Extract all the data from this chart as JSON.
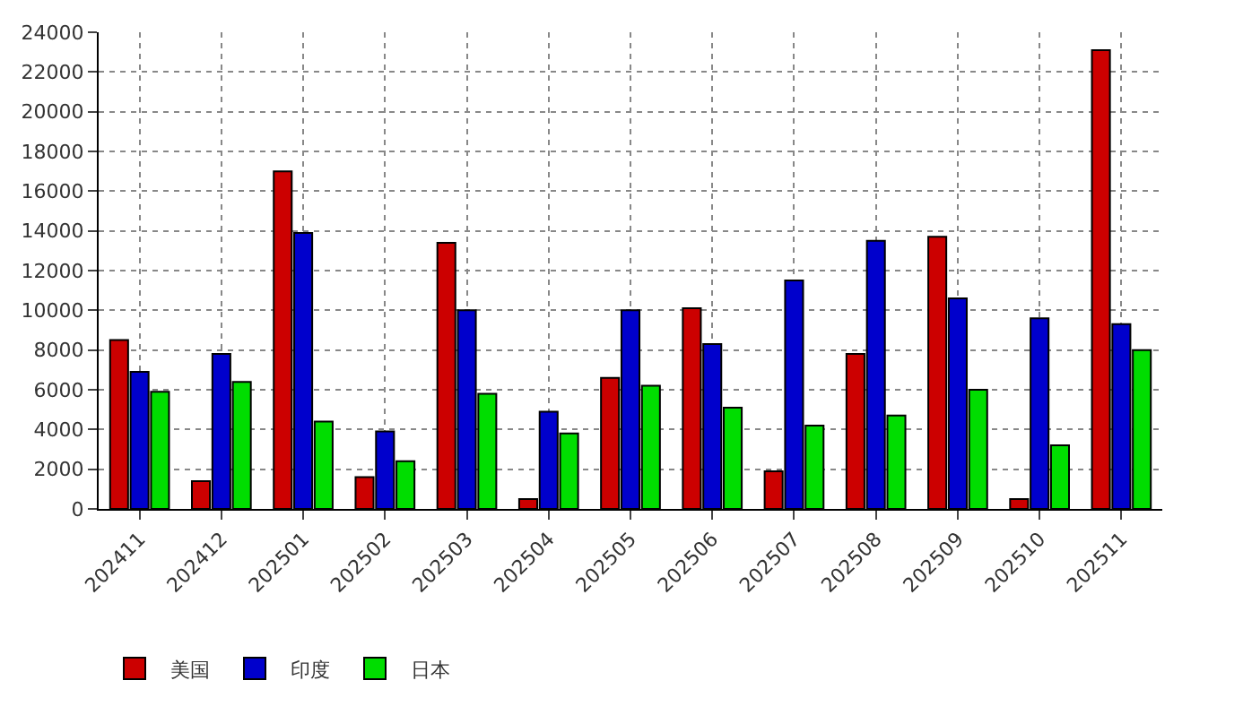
{
  "chart_data": {
    "type": "bar",
    "categories": [
      "202411",
      "202412",
      "202501",
      "202502",
      "202503",
      "202504",
      "202505",
      "202506",
      "202507",
      "202508",
      "202509",
      "202510",
      "202511"
    ],
    "series": [
      {
        "name": "美国",
        "color": "#cc0000",
        "values": [
          8500,
          1400,
          17000,
          1600,
          13400,
          500,
          6600,
          10100,
          1900,
          7800,
          13700,
          500,
          23100
        ]
      },
      {
        "name": "印度",
        "color": "#0000cc",
        "values": [
          6900,
          7800,
          13900,
          3900,
          10000,
          4900,
          10000,
          8300,
          11500,
          13500,
          10600,
          9600,
          9300
        ]
      },
      {
        "name": "日本",
        "color": "#00dd00",
        "values": [
          5900,
          6400,
          4400,
          2400,
          5800,
          3800,
          6200,
          5100,
          4200,
          4700,
          6000,
          3200,
          8000
        ]
      }
    ],
    "ylim": [
      0,
      24000
    ],
    "yticks": [
      0,
      2000,
      4000,
      6000,
      8000,
      10000,
      12000,
      14000,
      16000,
      18000,
      20000,
      22000,
      24000
    ],
    "grid": true,
    "legend": "bottom left"
  }
}
